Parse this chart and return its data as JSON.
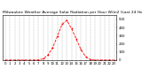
{
  "title": "Milwaukee Weather Average Solar Radiation per Hour W/m2 (Last 24 Hours)",
  "hours": [
    0,
    1,
    2,
    3,
    4,
    5,
    6,
    7,
    8,
    9,
    10,
    11,
    12,
    13,
    14,
    15,
    16,
    17,
    18,
    19,
    20,
    21,
    22,
    23
  ],
  "values": [
    0,
    0,
    0,
    0,
    0,
    0,
    0,
    2,
    15,
    60,
    150,
    290,
    440,
    490,
    390,
    260,
    130,
    40,
    5,
    0,
    0,
    0,
    0,
    0
  ],
  "line_color": "#ff0000",
  "bg_color": "#ffffff",
  "plot_bg": "#ffffff",
  "grid_color": "#aaaaaa",
  "text_color": "#000000",
  "spine_color": "#000000",
  "ylim": [
    0,
    550
  ],
  "yticks": [
    0,
    100,
    200,
    300,
    400,
    500
  ],
  "title_fontsize": 3.2,
  "axis_fontsize": 2.8,
  "linewidth": 0.6,
  "markersize": 0.9,
  "linestyle": "--"
}
